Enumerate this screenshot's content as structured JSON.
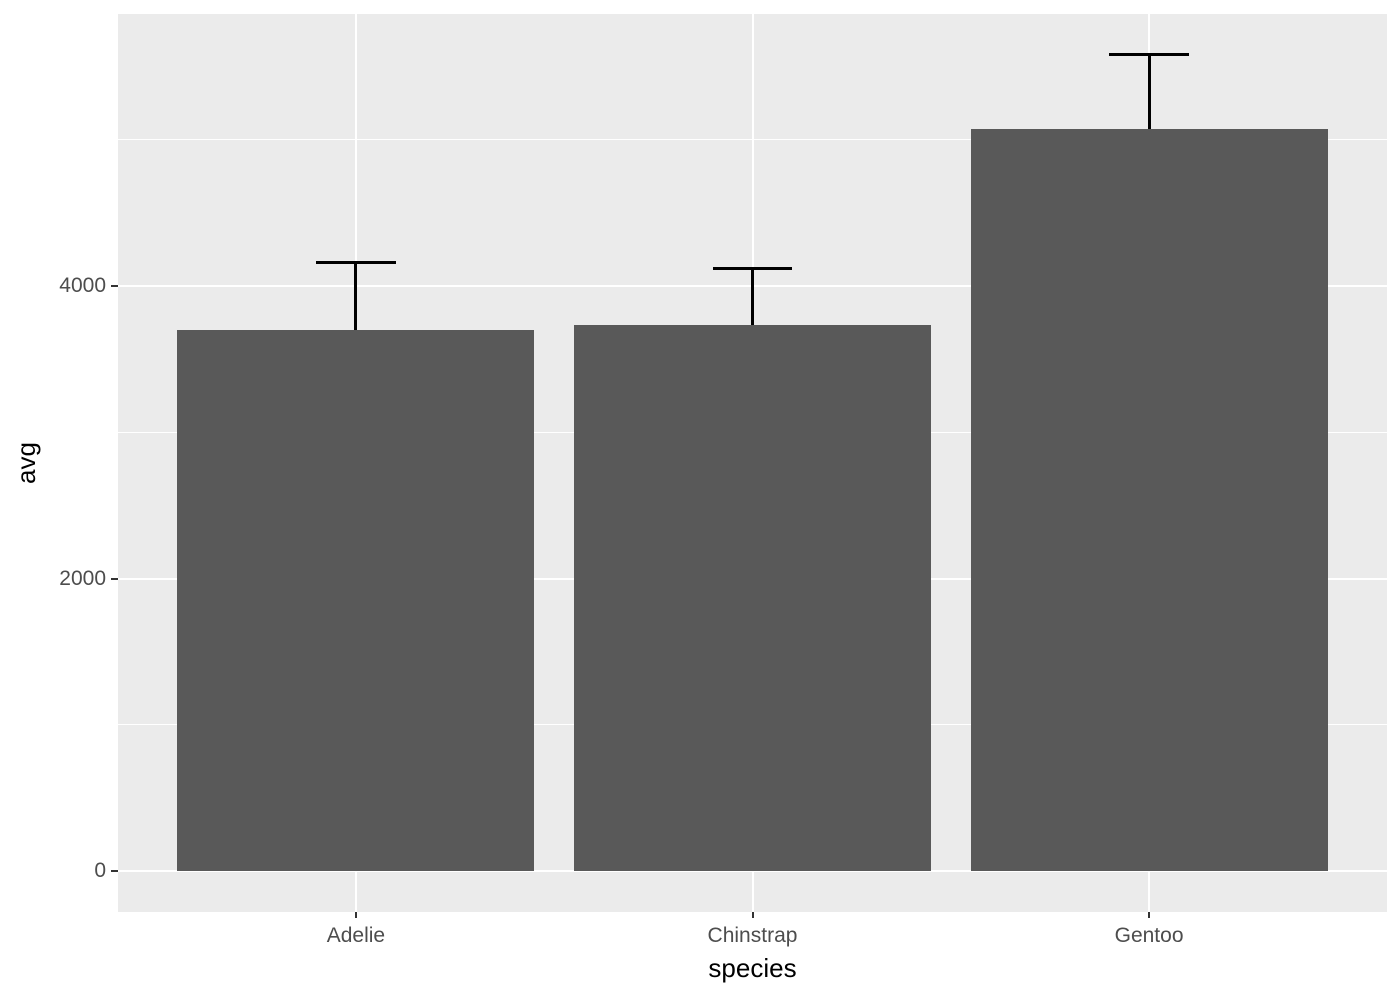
{
  "chart_data": {
    "type": "bar",
    "title": "",
    "categories": [
      "Adelie",
      "Chinstrap",
      "Gentoo"
    ],
    "values": [
      3700,
      3733,
      5076
    ],
    "error_upper": [
      4158,
      4117,
      5580
    ],
    "xlabel": "species",
    "ylabel": "avg",
    "ytick_labels": [
      "0",
      "2000",
      "4000"
    ],
    "yticks": [
      0,
      2000,
      4000
    ],
    "yticks_minor": [
      1000,
      3000,
      5000
    ],
    "ylim": [
      -279,
      5859
    ],
    "grid": true,
    "legend": false,
    "bar_width_fraction": 0.9,
    "errorbar_cap_fraction": 0.2,
    "colors": {
      "bar_fill": "#595959",
      "panel_bg": "#EBEBEB",
      "gridline": "#FFFFFF",
      "error_bar": "#000000",
      "tick_mark": "#333333",
      "tick_label": "#4D4D4D",
      "axis_title": "#000000",
      "page_bg": "#FFFFFF"
    }
  }
}
